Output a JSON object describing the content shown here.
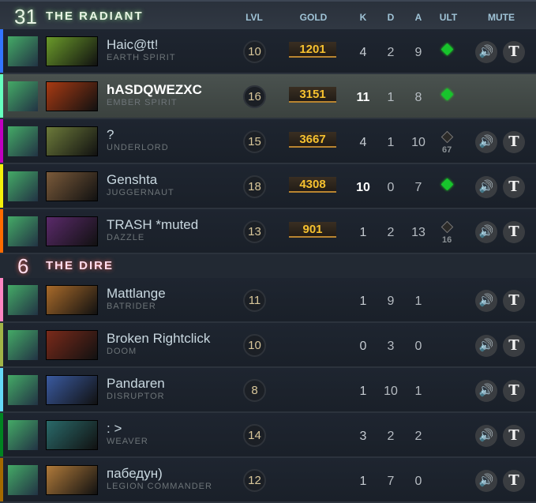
{
  "header": {
    "radiant_score": "31",
    "radiant_title": "THE RADIANT",
    "columns": {
      "lvl": "LVL",
      "gold": "GOLD",
      "k": "K",
      "d": "D",
      "a": "A",
      "ult": "ULT",
      "mute": "MUTE"
    }
  },
  "dire": {
    "score": "6",
    "title": "THE DIRE"
  },
  "colors": {
    "gold": "#f6c12f",
    "ult_ready": "#17c42c"
  },
  "radiant_players": [
    {
      "name": "Haic@tt!",
      "hero": "EARTH SPIRIT",
      "level": "10",
      "gold": "1201",
      "k": "4",
      "d": "2",
      "a": "9",
      "ult": "ready",
      "ult_cd": "",
      "color": "#3375ff",
      "hero_color": "#6a9a2a"
    },
    {
      "name": "hASDQWEZXC",
      "hero": "EMBER SPIRIT",
      "level": "16",
      "gold": "3151",
      "k": "11",
      "d": "1",
      "a": "8",
      "ult": "ready",
      "ult_cd": "",
      "color": "#66ffbf",
      "hero_color": "#a83a12",
      "self": true
    },
    {
      "name": "?",
      "hero": "UNDERLORD",
      "level": "15",
      "gold": "3667",
      "k": "4",
      "d": "1",
      "a": "10",
      "ult": "cooldown",
      "ult_cd": "67",
      "color": "#bf00bf",
      "hero_color": "#6c7a3a"
    },
    {
      "name": "Genshta",
      "hero": "JUGGERNAUT",
      "level": "18",
      "gold": "4308",
      "k": "10",
      "d": "0",
      "a": "7",
      "ult": "ready",
      "ult_cd": "",
      "color": "#f3f00b",
      "hero_color": "#7a5a3a"
    },
    {
      "name": "TRASH *muted",
      "hero": "DAZZLE",
      "level": "13",
      "gold": "901",
      "k": "1",
      "d": "2",
      "a": "13",
      "ult": "cooldown",
      "ult_cd": "16",
      "color": "#ff6b00",
      "hero_color": "#5a2a6a"
    }
  ],
  "dire_players": [
    {
      "name": "Mattlange",
      "hero": "BATRIDER",
      "level": "11",
      "k": "1",
      "d": "9",
      "a": "1",
      "color": "#fe86c2",
      "hero_color": "#a86a2a"
    },
    {
      "name": "Broken Rightclick",
      "hero": "DOOM",
      "level": "10",
      "k": "0",
      "d": "3",
      "a": "0",
      "color": "#a1b447",
      "hero_color": "#7a2a1a"
    },
    {
      "name": "Pandaren",
      "hero": "DISRUPTOR",
      "level": "8",
      "k": "1",
      "d": "10",
      "a": "1",
      "color": "#65d9f7",
      "hero_color": "#3a5aa0"
    },
    {
      "name": ": >",
      "hero": "WEAVER",
      "level": "14",
      "k": "3",
      "d": "2",
      "a": "2",
      "color": "#008321",
      "hero_color": "#2a6a6a"
    },
    {
      "name": "пабедун)",
      "hero": "LEGION COMMANDER",
      "level": "12",
      "k": "1",
      "d": "7",
      "a": "0",
      "color": "#a46900",
      "hero_color": "#b07a3a"
    }
  ],
  "icons": {
    "mute_voice": "speaker-icon",
    "mute_text": "text-chat-icon"
  },
  "mute_labels": {
    "voice": "🔊",
    "text": "T"
  }
}
